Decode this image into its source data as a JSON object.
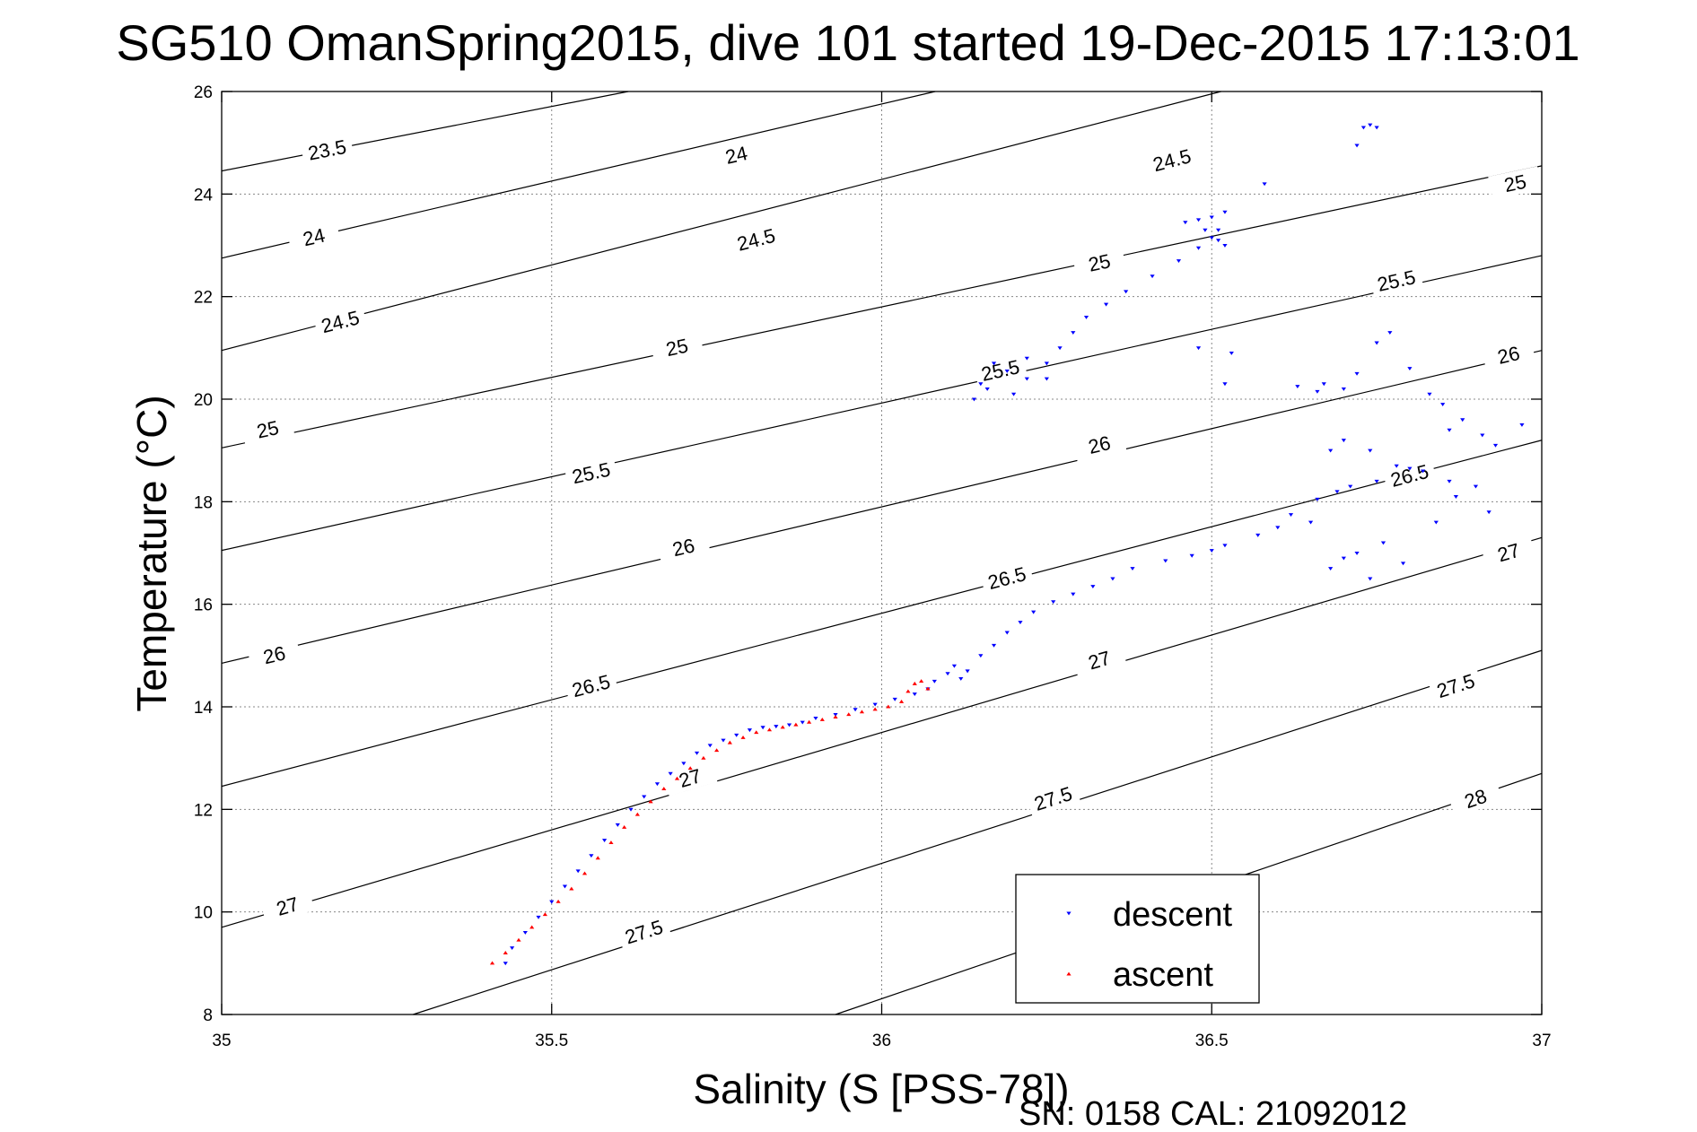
{
  "chart_data": {
    "type": "scatter",
    "title": "SG510 OmanSpring2015, dive 101 started 19-Dec-2015 17:13:01",
    "xlabel": "Salinity (S [PSS-78])",
    "ylabel": "Temperature (°C)",
    "xlim": [
      35,
      37
    ],
    "ylim": [
      8,
      26
    ],
    "x_ticks": [
      35,
      35.5,
      36,
      36.5,
      37
    ],
    "x_tick_labels": [
      "35",
      "35.5",
      "36",
      "36.5",
      "37"
    ],
    "y_ticks": [
      8,
      10,
      12,
      14,
      16,
      18,
      20,
      22,
      24,
      26
    ],
    "y_tick_labels": [
      "8",
      "10",
      "12",
      "14",
      "16",
      "18",
      "20",
      "22",
      "24",
      "26"
    ],
    "grid": true,
    "legend_position": "bottom-right",
    "footer_note": "SN: 0158  CAL: 21092012",
    "contours": [
      {
        "level": 23.5,
        "label": "23.5",
        "points": [
          [
            35,
            24.45
          ],
          [
            35.616,
            26
          ]
        ],
        "label_at": [
          [
            35.16,
            24.85
          ]
        ]
      },
      {
        "level": 24,
        "label": "24",
        "points": [
          [
            35,
            22.75
          ],
          [
            36.081,
            26
          ]
        ],
        "label_at": [
          [
            35.14,
            23.15
          ],
          [
            35.78,
            24.75
          ]
        ]
      },
      {
        "level": 24.5,
        "label": "24.5",
        "points": [
          [
            35,
            20.95
          ],
          [
            36.514,
            26
          ]
        ],
        "label_at": [
          [
            35.18,
            21.5
          ],
          [
            35.81,
            23.1
          ],
          [
            36.44,
            24.65
          ]
        ]
      },
      {
        "level": 25,
        "label": "25",
        "points": [
          [
            35,
            19.05
          ],
          [
            37,
            24.55
          ]
        ],
        "label_at": [
          [
            35.07,
            19.4
          ],
          [
            35.69,
            21.0
          ],
          [
            36.33,
            22.65
          ],
          [
            36.96,
            24.2
          ]
        ]
      },
      {
        "level": 25.5,
        "label": "25.5",
        "points": [
          [
            35,
            17.05
          ],
          [
            37,
            22.8
          ]
        ],
        "label_at": [
          [
            35.56,
            18.55
          ],
          [
            36.18,
            20.55
          ],
          [
            36.78,
            22.3
          ]
        ]
      },
      {
        "level": 26,
        "label": "26",
        "points": [
          [
            35,
            14.85
          ],
          [
            37,
            20.95
          ]
        ],
        "label_at": [
          [
            35.08,
            15.0
          ],
          [
            35.7,
            17.1
          ],
          [
            36.33,
            19.1
          ],
          [
            36.95,
            20.85
          ]
        ]
      },
      {
        "level": 26.5,
        "label": "26.5",
        "points": [
          [
            35,
            12.45
          ],
          [
            37,
            19.2
          ]
        ],
        "label_at": [
          [
            35.56,
            14.4
          ],
          [
            36.19,
            16.5
          ],
          [
            36.8,
            18.5
          ]
        ]
      },
      {
        "level": 27,
        "label": "27",
        "points": [
          [
            35,
            9.7
          ],
          [
            37,
            17.3
          ]
        ],
        "label_at": [
          [
            35.1,
            10.1
          ],
          [
            35.71,
            12.6
          ],
          [
            36.33,
            14.9
          ],
          [
            36.95,
            17.0
          ]
        ]
      },
      {
        "level": 27.5,
        "label": "27.5",
        "points": [
          [
            35.29,
            8
          ],
          [
            37,
            15.1
          ]
        ],
        "label_at": [
          [
            35.64,
            9.6
          ],
          [
            36.26,
            12.2
          ],
          [
            36.87,
            14.4
          ]
        ]
      },
      {
        "level": 28,
        "label": "28",
        "points": [
          [
            35.93,
            8
          ],
          [
            37,
            12.7
          ]
        ],
        "label_at": [
          [
            36.9,
            12.2
          ]
        ]
      }
    ],
    "series": [
      {
        "name": "descent",
        "color": "#0000ff",
        "marker": "triangle-down",
        "x": [
          35.43,
          35.44,
          35.46,
          35.48,
          35.5,
          35.52,
          35.54,
          35.56,
          35.58,
          35.6,
          35.62,
          35.64,
          35.66,
          35.68,
          35.7,
          35.72,
          35.74,
          35.76,
          35.78,
          35.8,
          35.82,
          35.84,
          35.86,
          35.88,
          35.9,
          35.93,
          35.96,
          35.99,
          36.02,
          36.05,
          36.07,
          36.08,
          36.1,
          36.11,
          36.13,
          36.12,
          36.15,
          36.17,
          36.19,
          36.21,
          36.23,
          36.26,
          36.29,
          36.32,
          36.35,
          36.38,
          36.43,
          36.47,
          36.5,
          36.52,
          36.57,
          36.6,
          36.65,
          36.62,
          36.2,
          36.22,
          36.25,
          36.27,
          36.29,
          36.31,
          36.34,
          36.37,
          36.41,
          36.45,
          36.48,
          36.5,
          36.51,
          36.52,
          36.51,
          36.48,
          36.5,
          36.46,
          36.49,
          36.52,
          36.58,
          36.72,
          36.73,
          36.74,
          36.75,
          36.16,
          36.19,
          36.22,
          36.25,
          36.14,
          36.15,
          36.17,
          36.48,
          36.53,
          36.52,
          36.63,
          36.66,
          36.67,
          36.7,
          36.72,
          36.75,
          36.77,
          36.8,
          36.83,
          36.85,
          36.88,
          36.91,
          36.93,
          36.97,
          36.68,
          36.7,
          36.74,
          36.78,
          36.82,
          36.86,
          36.87,
          36.9,
          36.92,
          36.84,
          36.76,
          36.72,
          36.7,
          36.68,
          36.74,
          36.79,
          36.69,
          36.66,
          36.71,
          36.75,
          36.8,
          36.86
        ],
        "y": [
          9.0,
          9.3,
          9.6,
          9.9,
          10.2,
          10.5,
          10.8,
          11.1,
          11.4,
          11.7,
          12.0,
          12.25,
          12.5,
          12.7,
          12.9,
          13.1,
          13.25,
          13.35,
          13.45,
          13.55,
          13.6,
          13.62,
          13.65,
          13.7,
          13.78,
          13.85,
          13.95,
          14.05,
          14.15,
          14.25,
          14.35,
          14.5,
          14.65,
          14.8,
          14.7,
          14.55,
          15.0,
          15.2,
          15.45,
          15.65,
          15.85,
          16.05,
          16.2,
          16.35,
          16.5,
          16.7,
          16.85,
          16.95,
          17.05,
          17.15,
          17.35,
          17.5,
          17.6,
          17.75,
          20.1,
          20.4,
          20.7,
          21.0,
          21.3,
          21.6,
          21.85,
          22.1,
          22.4,
          22.7,
          22.95,
          23.15,
          23.1,
          23.0,
          23.3,
          23.5,
          23.55,
          23.45,
          23.3,
          23.65,
          24.2,
          24.95,
          25.3,
          25.35,
          25.3,
          20.2,
          20.55,
          20.8,
          20.4,
          20.0,
          20.3,
          20.7,
          21.0,
          20.9,
          20.3,
          20.25,
          20.15,
          20.3,
          20.2,
          20.5,
          21.1,
          21.3,
          20.6,
          20.1,
          19.9,
          19.6,
          19.3,
          19.1,
          19.5,
          19.0,
          19.2,
          19.0,
          18.7,
          18.6,
          18.4,
          18.1,
          18.3,
          17.8,
          17.6,
          17.2,
          17.0,
          16.9,
          16.7,
          16.5,
          16.8,
          18.2,
          18.05,
          18.3,
          18.4,
          18.65,
          19.4
        ],
        "note": "approximate trace read from the plot"
      },
      {
        "name": "ascent",
        "color": "#ff0000",
        "marker": "triangle-up",
        "x": [
          35.41,
          35.43,
          35.45,
          35.47,
          35.49,
          35.51,
          35.53,
          35.55,
          35.57,
          35.59,
          35.61,
          35.63,
          35.65,
          35.67,
          35.69,
          35.71,
          35.73,
          35.75,
          35.77,
          35.79,
          35.81,
          35.83,
          35.85,
          35.87,
          35.89,
          35.91,
          35.93,
          35.95,
          35.97,
          35.99,
          36.01,
          36.03,
          36.04,
          36.05,
          36.06,
          36.07
        ],
        "y": [
          9.0,
          9.2,
          9.45,
          9.7,
          9.95,
          10.2,
          10.45,
          10.75,
          11.05,
          11.35,
          11.65,
          11.9,
          12.15,
          12.4,
          12.6,
          12.8,
          13.0,
          13.15,
          13.3,
          13.4,
          13.5,
          13.55,
          13.6,
          13.65,
          13.7,
          13.75,
          13.8,
          13.85,
          13.9,
          13.95,
          14.0,
          14.1,
          14.3,
          14.45,
          14.5,
          14.35
        ]
      }
    ]
  }
}
